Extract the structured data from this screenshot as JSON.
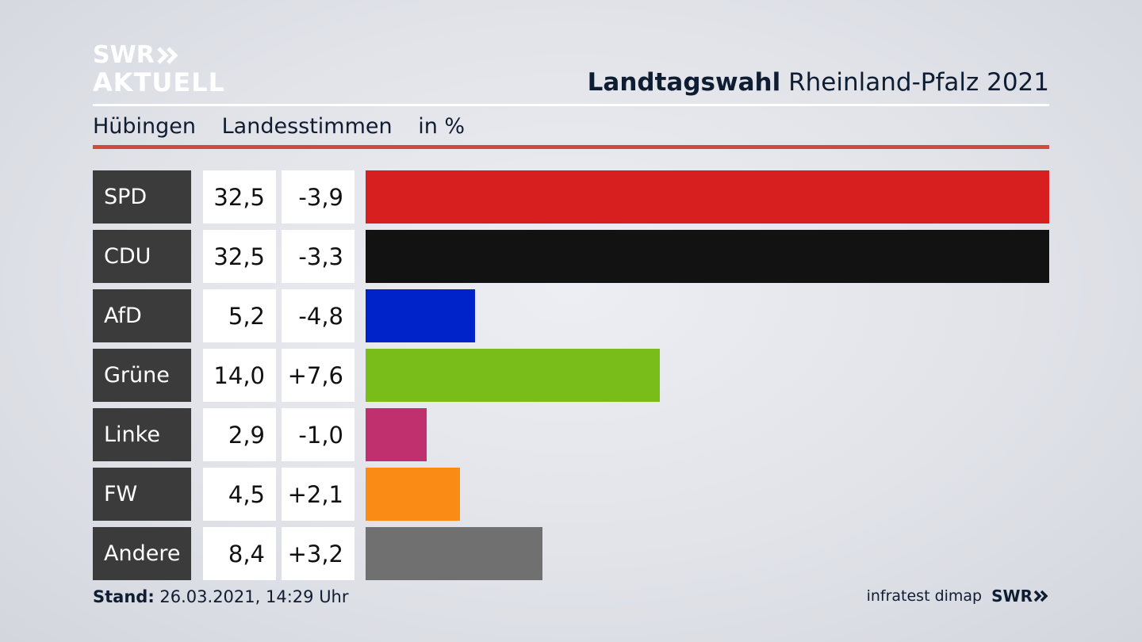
{
  "logo": {
    "line1": "SWR",
    "line2": "AKTUELL",
    "chevron_icon": "double-chevron-right-icon"
  },
  "header": {
    "title_bold": "Landtagswahl",
    "title_rest": "Rheinland-Pfalz 2021"
  },
  "subheader": {
    "place": "Hübingen",
    "measure": "Landesstimmen",
    "unit": "in %"
  },
  "colors": {
    "divider_accent": "#d24a3c",
    "label_bg": "#3b3b3b"
  },
  "chart_data": {
    "type": "bar",
    "orientation": "horizontal",
    "categories": [
      "SPD",
      "CDU",
      "AfD",
      "Grüne",
      "Linke",
      "FW",
      "Andere"
    ],
    "values": [
      32.5,
      32.5,
      5.2,
      14.0,
      2.9,
      4.5,
      8.4
    ],
    "value_labels": [
      "32,5",
      "32,5",
      "5,2",
      "14,0",
      "2,9",
      "4,5",
      "8,4"
    ],
    "changes": [
      -3.9,
      -3.3,
      -4.8,
      7.6,
      -1.0,
      2.1,
      3.2
    ],
    "change_labels": [
      "-3,9",
      "-3,3",
      "-4,8",
      "+7,6",
      "-1,0",
      "+2,1",
      "+3,2"
    ],
    "colors": [
      "#d71f1f",
      "#121212",
      "#0022c9",
      "#79bd1a",
      "#c0306f",
      "#fa8c16",
      "#707070"
    ],
    "xlim": [
      0,
      32.5
    ],
    "grid": false,
    "legend": "none"
  },
  "footer": {
    "stand_label": "Stand:",
    "stand_value": "26.03.2021, 14:29 Uhr",
    "source": "infratest dimap",
    "brand": "SWR",
    "brand_icon": "double-chevron-right-icon"
  }
}
